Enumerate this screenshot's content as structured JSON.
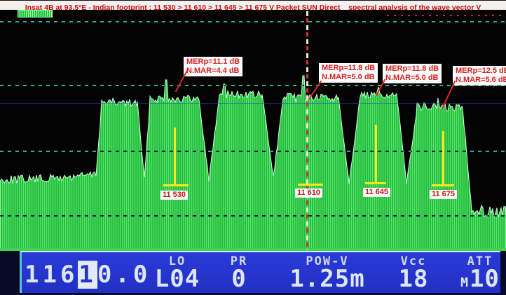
{
  "title": "Insat 4B at 93.5°E - Indian footprint : 11 530 > 11 610 > 11 645 > 11 675 V Packet SUN Direct _ spectral analysis of the wave vector V",
  "annotations": [
    {
      "line1": "MERp=11.1 dB",
      "line2": "N.MAR=4.4 dB"
    },
    {
      "line1": "MERp=11.8 dB",
      "line2": "N.MAR=5.0 dB"
    },
    {
      "line1": "MERp=11.8 dB",
      "line2": "N.MAR=5.0 dB"
    },
    {
      "line1": "MERp=12.5 dB",
      "line2": "N.MAR=5.6 dB"
    }
  ],
  "markers": [
    {
      "label": "11 530"
    },
    {
      "label": "11 610"
    },
    {
      "label": "11 645"
    },
    {
      "label": "11 675"
    }
  ],
  "status_bar": {
    "frequency": {
      "prefix": "116",
      "highlight": "1",
      "suffix": "0.0"
    },
    "lo_label": "LO",
    "lo_value": "L04",
    "pr_label": "PR",
    "pr_value": "0",
    "pow_label": "POW-V",
    "pow_value": "1.25m",
    "vcc_label": "Vcc",
    "vcc_value": "18",
    "att_label": "ATT",
    "att_prefix": "M",
    "att_value": "10"
  },
  "chart_data": {
    "type": "area",
    "title": "spectral analysis of the wave vector V",
    "x_unit": "MHz (Ku-band downlink)",
    "marker_frequencies": [
      11530,
      11610,
      11645,
      11675
    ],
    "center_cursor_frequency": 11610.0,
    "carriers": [
      {
        "freq_label": "11 530",
        "merp_db": 11.1,
        "noise_margin_db": 4.4
      },
      {
        "freq_label": "11 610",
        "merp_db": 11.8,
        "noise_margin_db": 5.0
      },
      {
        "freq_label": "11 645",
        "merp_db": 11.8,
        "noise_margin_db": 5.0
      },
      {
        "freq_label": "11 675",
        "merp_db": 12.5,
        "noise_margin_db": 5.6
      }
    ],
    "grid": "4 dashed horizontal graticule lines",
    "legend_position": "none"
  },
  "spectrum": {
    "segments": [
      [
        0,
        8,
        244,
        242,
        5
      ],
      [
        8,
        60,
        242,
        241,
        6
      ],
      [
        60,
        105,
        241,
        239,
        6
      ],
      [
        105,
        137,
        237,
        235,
        5
      ],
      [
        137,
        145,
        235,
        136,
        3
      ],
      [
        145,
        196,
        132,
        133,
        6
      ],
      [
        196,
        206,
        132,
        242,
        3
      ],
      [
        206,
        214,
        242,
        132,
        3
      ],
      [
        214,
        284,
        126,
        128,
        6
      ],
      [
        284,
        298,
        128,
        243,
        3
      ],
      [
        298,
        313,
        243,
        124,
        3
      ],
      [
        313,
        374,
        120,
        122,
        6
      ],
      [
        374,
        390,
        121,
        239,
        3
      ],
      [
        390,
        404,
        239,
        128,
        3
      ],
      [
        404,
        483,
        125,
        126,
        6
      ],
      [
        483,
        498,
        125,
        246,
        3
      ],
      [
        498,
        514,
        246,
        124,
        3
      ],
      [
        514,
        566,
        122,
        122,
        5
      ],
      [
        566,
        580,
        122,
        246,
        3
      ],
      [
        580,
        595,
        246,
        142,
        3
      ],
      [
        595,
        660,
        138,
        140,
        6
      ],
      [
        660,
        673,
        139,
        282,
        4
      ],
      [
        673,
        722,
        285,
        289,
        9
      ]
    ],
    "spikes": [
      [
        237,
        100
      ],
      [
        320,
        106
      ],
      [
        433,
        94
      ],
      [
        540,
        110
      ],
      [
        625,
        126
      ]
    ]
  },
  "colors": {
    "trace_green": "#25b93f",
    "trace_green_light": "#55e768",
    "grid_teal": "#35b498",
    "marker_yellow": "#ffe81a",
    "annotation_red": "#d42222",
    "title_red": "#cc0a0a",
    "bar_blue": "#2434d2",
    "cursor_cream": "#efe9d2",
    "cursor_red": "#d03038"
  }
}
